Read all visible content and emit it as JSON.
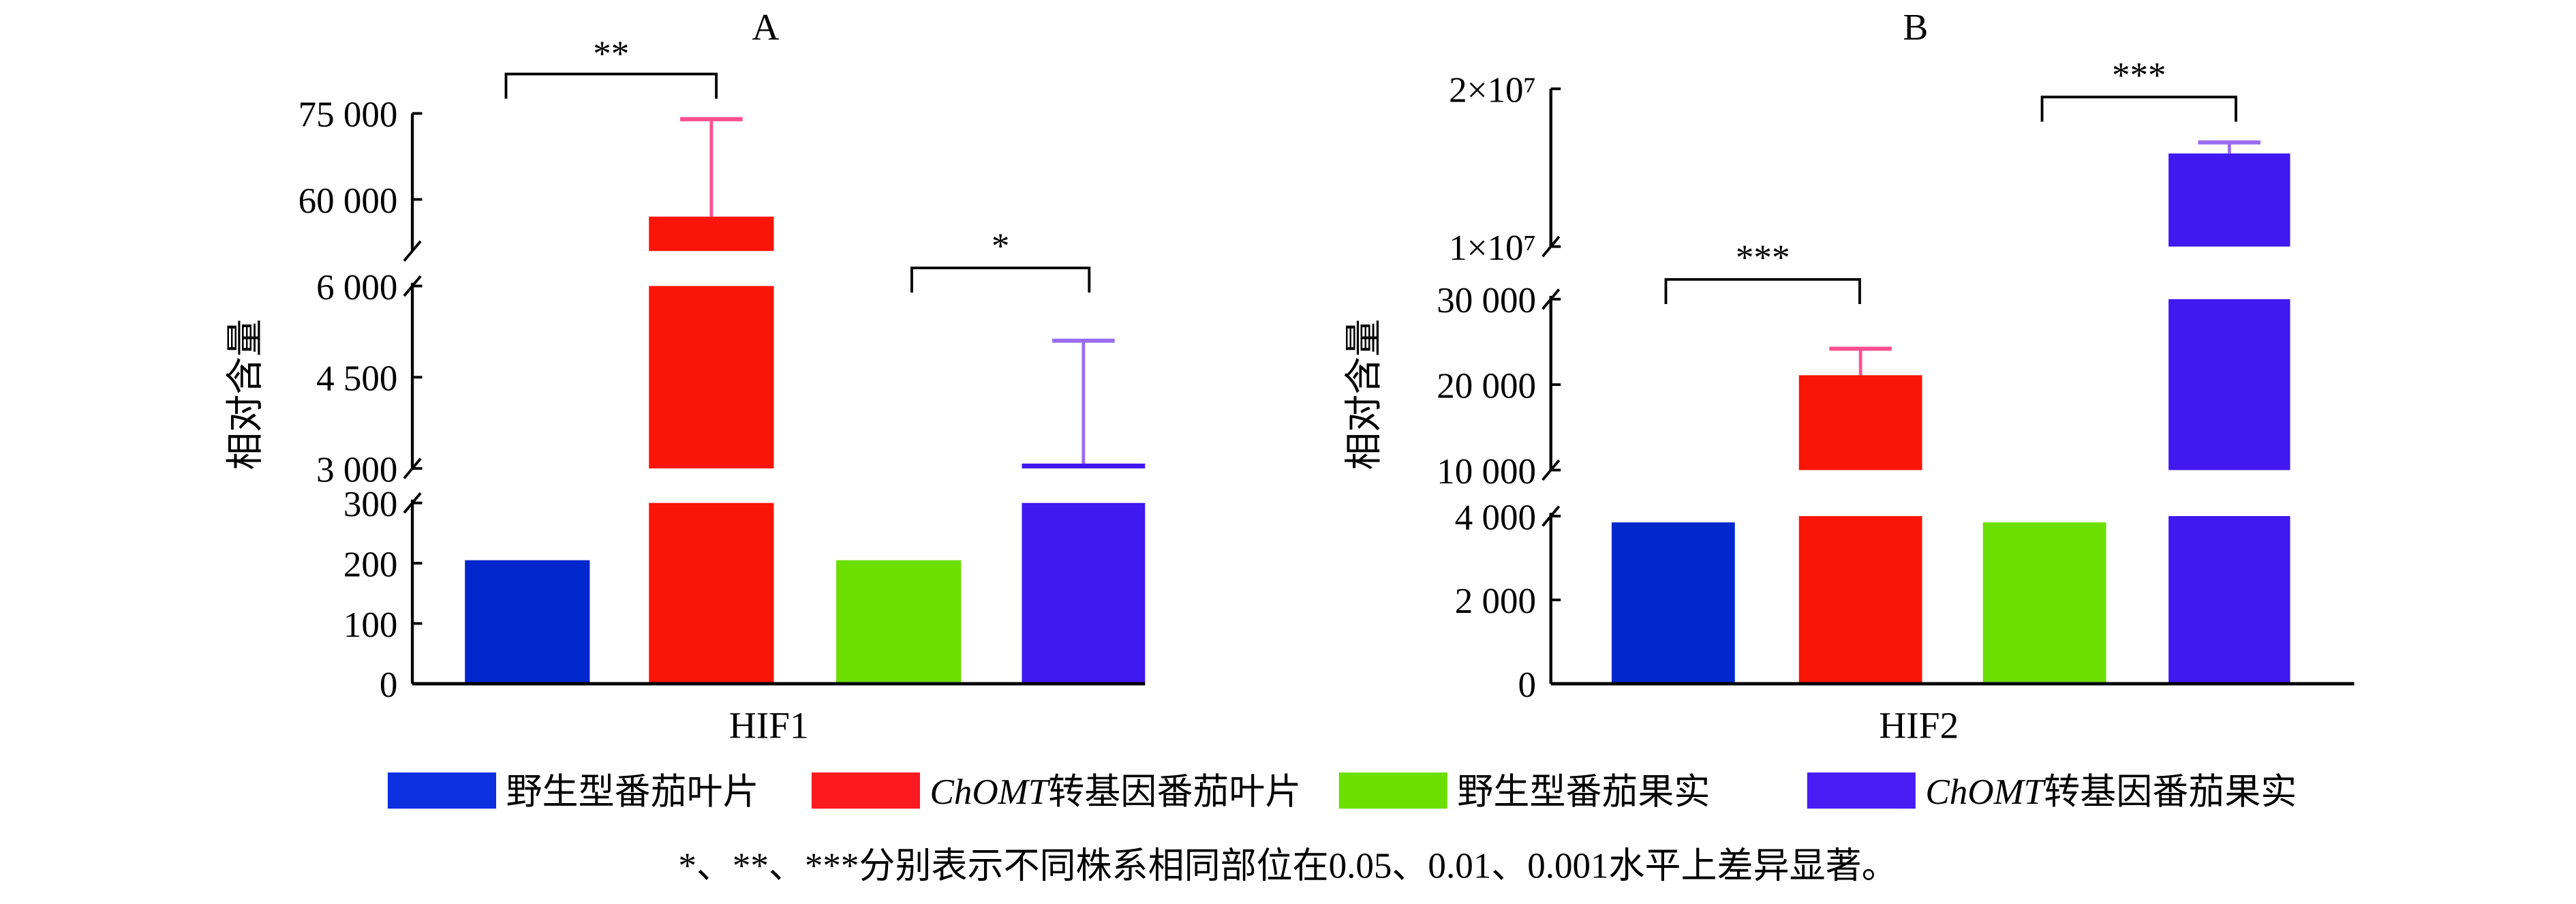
{
  "chart_data": [
    {
      "type": "bar",
      "title": "A",
      "xlabel": "HIF1",
      "ylabel": "相对含量",
      "broken_axis_segments": [
        [
          0,
          300
        ],
        [
          3000,
          6000
        ],
        [
          51000,
          75000
        ]
      ],
      "ticks": [
        [
          {
            "v": 0,
            "label": "0"
          },
          {
            "v": 100,
            "label": "100"
          },
          {
            "v": 200,
            "label": "200"
          },
          {
            "v": 300,
            "label": "300"
          }
        ],
        [
          {
            "v": 3000,
            "label": "3 000"
          },
          {
            "v": 4500,
            "label": "4 500"
          },
          {
            "v": 6000,
            "label": "6 000"
          }
        ],
        [
          {
            "v": 60000,
            "label": "60 000"
          },
          {
            "v": 75000,
            "label": "75 000"
          }
        ]
      ],
      "values": [
        205,
        57000,
        205,
        3080
      ],
      "error_upper": [
        null,
        74000,
        null,
        5100
      ],
      "significance": [
        {
          "between": [
            0,
            1
          ],
          "label": "**"
        },
        {
          "between": [
            2,
            3
          ],
          "label": "*"
        }
      ]
    },
    {
      "type": "bar",
      "title": "B",
      "xlabel": "HIF2",
      "ylabel": "相对含量",
      "broken_axis_segments": [
        [
          0,
          4000
        ],
        [
          10000,
          30000
        ],
        [
          10000000,
          20000000
        ]
      ],
      "ticks": [
        [
          {
            "v": 0,
            "label": "0"
          },
          {
            "v": 2000,
            "label": "2 000"
          },
          {
            "v": 4000,
            "label": "4 000"
          }
        ],
        [
          {
            "v": 10000,
            "label": "10 000"
          },
          {
            "v": 20000,
            "label": "20 000"
          },
          {
            "v": 30000,
            "label": "30 000"
          }
        ],
        [
          {
            "v": 10000000,
            "label": "1×10⁷"
          },
          {
            "v": 20000000,
            "label": "2×10⁷"
          }
        ]
      ],
      "values": [
        3850,
        21100,
        3850,
        15900000
      ],
      "error_upper": [
        null,
        24200,
        null,
        16600000
      ],
      "significance": [
        {
          "between": [
            0,
            1
          ],
          "label": "***"
        },
        {
          "between": [
            2,
            3
          ],
          "label": "***"
        }
      ]
    }
  ],
  "legend": [
    {
      "label_italic": "",
      "label": "野生型番茄叶片",
      "color": "#0a30e0"
    },
    {
      "label_italic": "ChOMT",
      "label": "转基因番茄叶片",
      "color": "#fa1a20"
    },
    {
      "label_italic": "",
      "label": "野生型番茄果实",
      "color": "#6ddf00"
    },
    {
      "label_italic": "ChOMT",
      "label": "转基因番茄果实",
      "color": "#4a1cf5"
    }
  ],
  "bar_colors": [
    "#0028cc",
    "#fa1508",
    "#6ddf00",
    "#4018f0"
  ],
  "error_colors": [
    "#000000",
    "#ff4f8f",
    "#000000",
    "#9a6cf0"
  ],
  "footnote": "*、**、***分别表示不同株系相同部位在0.05、0.01、0.001水平上差异显著。"
}
